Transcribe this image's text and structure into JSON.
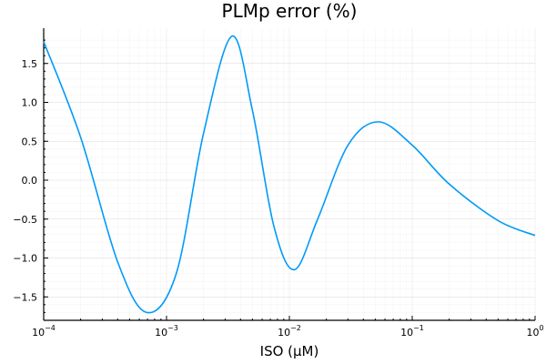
{
  "chart_data": {
    "type": "line",
    "title": "PLMp error (%)",
    "xlabel": "ISO (μM)",
    "ylabel": "",
    "xscale": "log10",
    "xlim": [
      0.0001,
      1
    ],
    "ylim": [
      -1.8,
      1.95
    ],
    "grid": true,
    "legend": null,
    "x_ticks": [
      {
        "base": "10",
        "exp": "−4",
        "value": 0.0001
      },
      {
        "base": "10",
        "exp": "−3",
        "value": 0.001
      },
      {
        "base": "10",
        "exp": "−2",
        "value": 0.01
      },
      {
        "base": "10",
        "exp": "−1",
        "value": 0.1
      },
      {
        "base": "10",
        "exp": "0",
        "value": 1
      }
    ],
    "y_ticks": [
      {
        "label": "1.5",
        "value": 1.5
      },
      {
        "label": "1.0",
        "value": 1.0
      },
      {
        "label": "0.5",
        "value": 0.5
      },
      {
        "label": "0.0",
        "value": 0.0
      },
      {
        "label": "−0.5",
        "value": -0.5
      },
      {
        "label": "−1.0",
        "value": -1.0
      },
      {
        "label": "−1.5",
        "value": -1.5
      }
    ],
    "series": [
      {
        "name": "PLMp error",
        "color": "#009AFA",
        "x": [
          0.0001,
          0.0002,
          0.0004,
          0.00069,
          0.0012,
          0.002,
          0.0034,
          0.005,
          0.0075,
          0.011,
          0.017,
          0.03,
          0.053,
          0.1,
          0.2,
          0.5,
          1.0
        ],
        "y": [
          1.78,
          0.55,
          -1.05,
          -1.7,
          -1.2,
          0.6,
          1.85,
          0.9,
          -0.6,
          -1.15,
          -0.5,
          0.45,
          0.75,
          0.45,
          -0.05,
          -0.52,
          -0.71
        ]
      }
    ]
  }
}
